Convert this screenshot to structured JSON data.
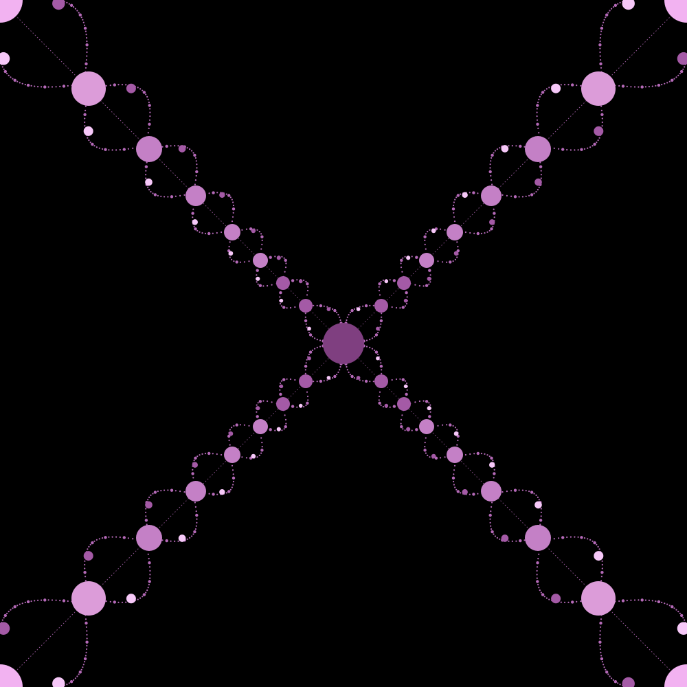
{
  "artwork": {
    "subject": "fractal-x-pattern",
    "symmetry": "four-fold-diagonal",
    "background_color": "#000000",
    "palette": {
      "center": "#7f3f80",
      "inner": "#a45aa6",
      "mid": "#c480c6",
      "outer": "#dc9cd9",
      "corner": "#f2b2f1",
      "accent": "#f6c8f8",
      "filigree": "#b56ab8"
    }
  }
}
